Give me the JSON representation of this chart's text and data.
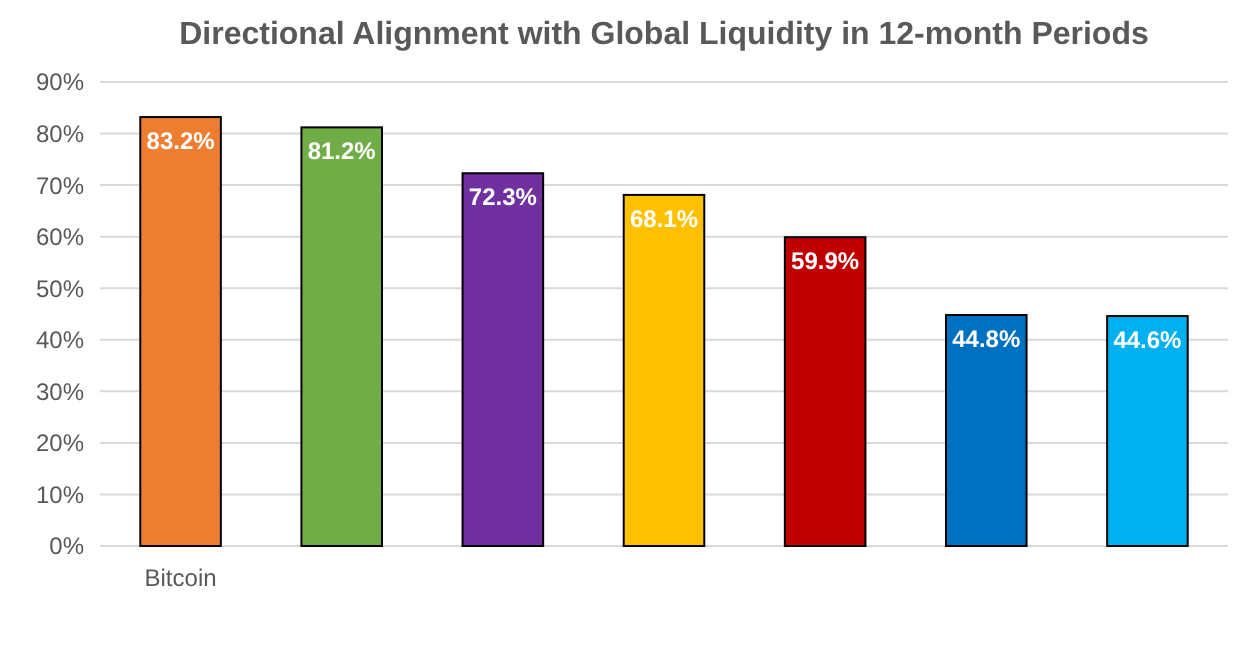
{
  "chart_data": {
    "type": "bar",
    "title": "Directional Alignment with Global Liquidity in 12-month Periods",
    "categories": [
      "Bitcoin",
      null,
      null,
      null,
      null,
      null,
      null
    ],
    "values": [
      83.2,
      81.2,
      72.3,
      68.1,
      59.9,
      44.8,
      44.6
    ],
    "colors": [
      "#ed7d31",
      "#70ad47",
      "#7030a0",
      "#ffc000",
      "#c00000",
      "#0070c0",
      "#00b0f0"
    ],
    "value_labels": [
      "83.2%",
      "81.2%",
      "72.3%",
      "68.1%",
      "59.9%",
      "44.8%",
      "44.6%"
    ],
    "ylim": [
      0,
      90
    ],
    "yticks": [
      {
        "value": 0,
        "label": "0%"
      },
      {
        "value": 10,
        "label": "10%"
      },
      {
        "value": 20,
        "label": "20%"
      },
      {
        "value": 30,
        "label": "30%"
      },
      {
        "value": 40,
        "label": "40%"
      },
      {
        "value": 50,
        "label": "50%"
      },
      {
        "value": 60,
        "label": "60%"
      },
      {
        "value": 70,
        "label": "70%"
      },
      {
        "value": 80,
        "label": "80%"
      },
      {
        "value": 90,
        "label": "90%"
      }
    ],
    "grid": "y"
  }
}
